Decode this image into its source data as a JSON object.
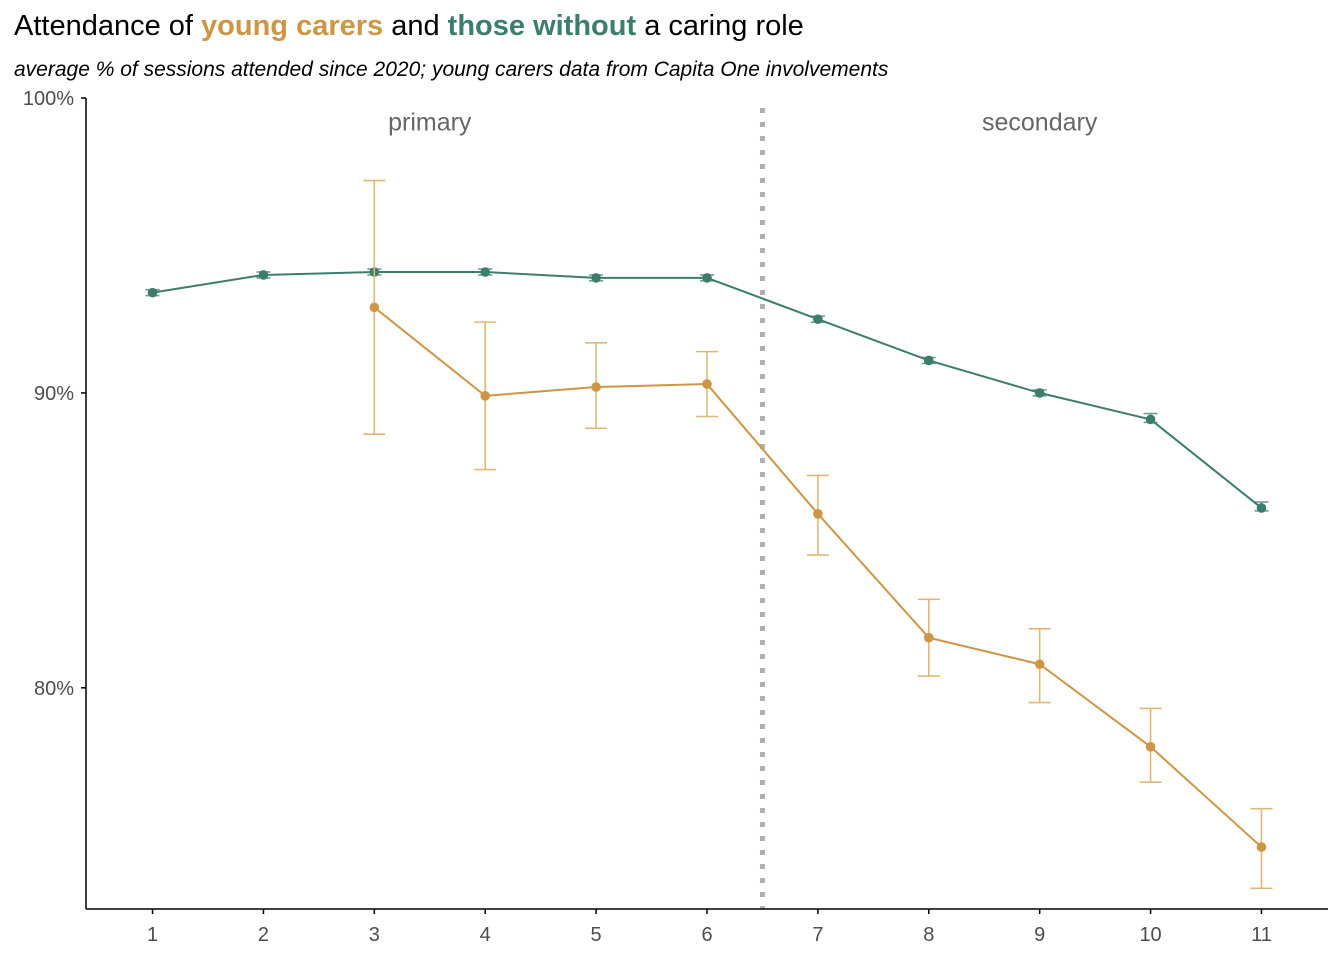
{
  "title": {
    "part1": "Attendance of ",
    "young": "young carers",
    "part2": " and ",
    "without": "those without",
    "part3": " a caring role"
  },
  "subtitle": "average % of sessions attended since 2020; young carers data from Capita One involvements",
  "colors": {
    "young_carers": "#CD9645",
    "young_carers_error": "#E0B876",
    "without": "#3C7D6E",
    "without_error": "#6E9E92",
    "divider": "#B0B0B0",
    "axis": "#000000"
  },
  "chart_data": {
    "type": "line",
    "x": [
      1,
      2,
      3,
      4,
      5,
      6,
      7,
      8,
      9,
      10,
      11
    ],
    "x_tick_labels": [
      "1",
      "2",
      "3",
      "4",
      "5",
      "6",
      "7",
      "8",
      "9",
      "10",
      "11"
    ],
    "y_tick_labels": [
      "80%",
      "90%",
      "100%"
    ],
    "y_ticks": [
      80,
      90,
      100
    ],
    "ylim": [
      72.5,
      100
    ],
    "xlim": [
      0.4,
      11.6
    ],
    "divider_x": 6.5,
    "divider_style": "dotted",
    "annotations": [
      {
        "text": "primary",
        "x": 3.5,
        "y": 98.9
      },
      {
        "text": "secondary",
        "x": 9.0,
        "y": 98.9
      }
    ],
    "grid": false,
    "legend": "none (series named in title colours)",
    "series": [
      {
        "name": "those without",
        "key": "without",
        "values": [
          93.4,
          94.0,
          94.1,
          94.1,
          93.9,
          93.9,
          92.5,
          91.1,
          90.0,
          89.1,
          86.1
        ],
        "lower": [
          93.3,
          93.9,
          94.0,
          94.0,
          93.8,
          93.8,
          92.4,
          91.0,
          89.9,
          89.0,
          86.0
        ],
        "upper": [
          93.5,
          94.1,
          94.2,
          94.2,
          94.0,
          94.0,
          92.6,
          91.2,
          90.1,
          89.3,
          86.3
        ]
      },
      {
        "name": "young carers",
        "key": "young",
        "values": [
          null,
          null,
          92.9,
          89.9,
          90.2,
          90.3,
          85.9,
          81.7,
          80.8,
          78.0,
          74.6
        ],
        "lower": [
          null,
          null,
          88.6,
          87.4,
          88.8,
          89.2,
          84.5,
          80.4,
          79.5,
          76.8,
          73.2
        ],
        "upper": [
          null,
          null,
          97.2,
          92.4,
          91.7,
          91.4,
          87.2,
          83.0,
          82.0,
          79.3,
          75.9
        ]
      }
    ]
  }
}
